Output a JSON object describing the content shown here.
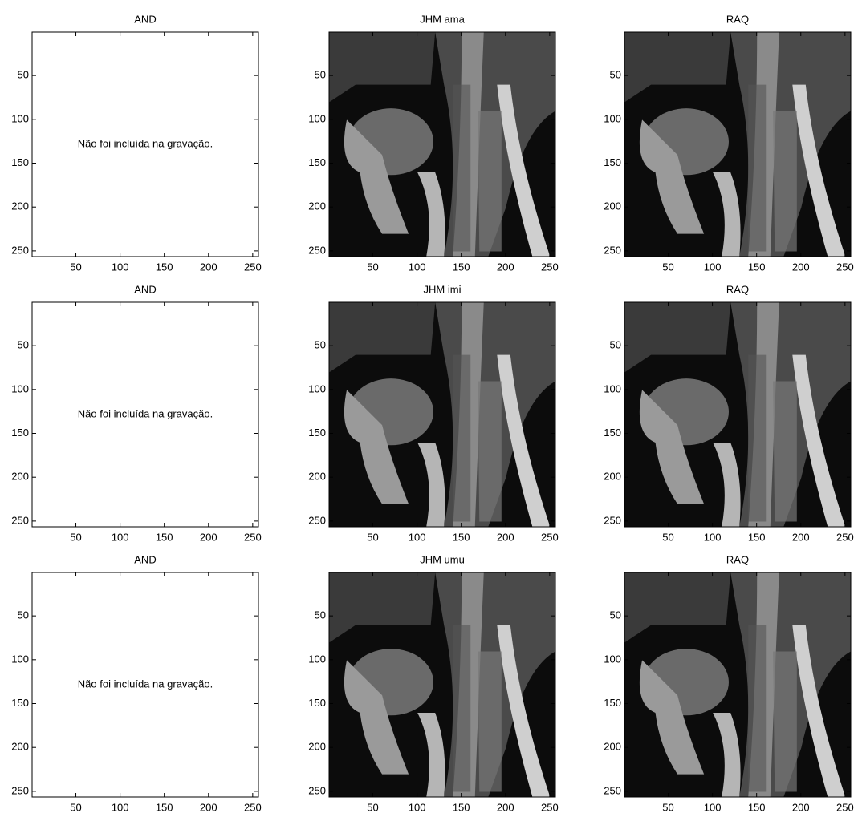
{
  "chart_data": [
    {
      "type": "note",
      "title": "AND",
      "annotation": "Não foi incluída na gravação.",
      "xlim": [
        0.5,
        256.5
      ],
      "ylim": [
        0.5,
        256.5
      ],
      "xticks": [
        50,
        100,
        150,
        200,
        250
      ],
      "yticks": [
        50,
        100,
        150,
        200,
        250
      ]
    },
    {
      "type": "image",
      "title": "JHM  ama",
      "xlim": [
        0.5,
        256.5
      ],
      "ylim": [
        0.5,
        256.5
      ],
      "xticks": [
        50,
        100,
        150,
        200,
        250
      ],
      "yticks": [
        50,
        100,
        150,
        200,
        250
      ]
    },
    {
      "type": "image",
      "title": "RAQ",
      "xlim": [
        0.5,
        256.5
      ],
      "ylim": [
        0.5,
        256.5
      ],
      "xticks": [
        50,
        100,
        150,
        200,
        250
      ],
      "yticks": [
        50,
        100,
        150,
        200,
        250
      ]
    },
    {
      "type": "note",
      "title": "AND",
      "annotation": "Não foi incluída na gravação.",
      "xlim": [
        0.5,
        256.5
      ],
      "ylim": [
        0.5,
        256.5
      ],
      "xticks": [
        50,
        100,
        150,
        200,
        250
      ],
      "yticks": [
        50,
        100,
        150,
        200,
        250
      ]
    },
    {
      "type": "image",
      "title": "JHM  imi",
      "xlim": [
        0.5,
        256.5
      ],
      "ylim": [
        0.5,
        256.5
      ],
      "xticks": [
        50,
        100,
        150,
        200,
        250
      ],
      "yticks": [
        50,
        100,
        150,
        200,
        250
      ]
    },
    {
      "type": "image",
      "title": "RAQ",
      "xlim": [
        0.5,
        256.5
      ],
      "ylim": [
        0.5,
        256.5
      ],
      "xticks": [
        50,
        100,
        150,
        200,
        250
      ],
      "yticks": [
        50,
        100,
        150,
        200,
        250
      ]
    },
    {
      "type": "note",
      "title": "AND",
      "annotation": "Não foi incluída na gravação.",
      "xlim": [
        0.5,
        256.5
      ],
      "ylim": [
        0.5,
        256.5
      ],
      "xticks": [
        50,
        100,
        150,
        200,
        250
      ],
      "yticks": [
        50,
        100,
        150,
        200,
        250
      ]
    },
    {
      "type": "image",
      "title": "JHM  umu",
      "xlim": [
        0.5,
        256.5
      ],
      "ylim": [
        0.5,
        256.5
      ],
      "xticks": [
        50,
        100,
        150,
        200,
        250
      ],
      "yticks": [
        50,
        100,
        150,
        200,
        250
      ]
    },
    {
      "type": "image",
      "title": "RAQ",
      "xlim": [
        0.5,
        256.5
      ],
      "ylim": [
        0.5,
        256.5
      ],
      "xticks": [
        50,
        100,
        150,
        200,
        250
      ],
      "yticks": [
        50,
        100,
        150,
        200,
        250
      ]
    }
  ]
}
